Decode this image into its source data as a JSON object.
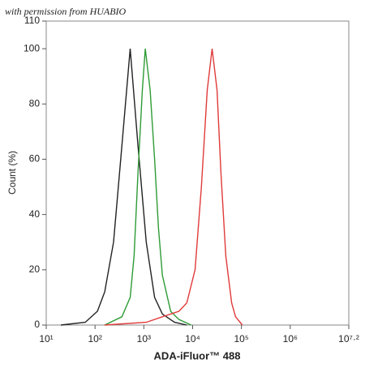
{
  "chart_data": {
    "type": "line",
    "watermark": "with permission from HUABIO",
    "xlabel": "ADA-iFluor™ 488",
    "ylabel": "Count  (%)",
    "xscale": "log",
    "xlim": [
      10,
      15848932
    ],
    "xticks": [
      {
        "value": 10,
        "label": "10¹"
      },
      {
        "value": 100,
        "label": "10²"
      },
      {
        "value": 1000,
        "label": "10³"
      },
      {
        "value": 10000,
        "label": "10⁴"
      },
      {
        "value": 100000,
        "label": "10⁵"
      },
      {
        "value": 1000000,
        "label": "10⁶"
      },
      {
        "value": 15848932,
        "label": "10⁷·²"
      }
    ],
    "ylim": [
      0,
      110
    ],
    "yticks": [
      0,
      20,
      40,
      60,
      80,
      100,
      110
    ],
    "series": [
      {
        "color": "#222222",
        "x": [
          20,
          63,
          112,
          158,
          240,
          355,
          525,
          759,
          1122,
          1660,
          2399,
          4266,
          7586
        ],
        "values": [
          0,
          1,
          5,
          12,
          30,
          65,
          100,
          65,
          30,
          10,
          4,
          1,
          0
        ]
      },
      {
        "color": "#2e9b35",
        "x": [
          158,
          355,
          525,
          631,
          759,
          933,
          1072,
          1349,
          1660,
          1995,
          2399,
          3548,
          5248,
          9333
        ],
        "values": [
          0,
          3,
          10,
          25,
          55,
          85,
          100,
          85,
          60,
          35,
          18,
          5,
          2,
          0
        ]
      },
      {
        "color": "#e03a3a",
        "x": [
          158,
          1122,
          2399,
          5248,
          7586,
          11220,
          15136,
          19953,
          25119,
          31623,
          38019,
          47863,
          63096,
          75858,
          104713
        ],
        "values": [
          0,
          1,
          3,
          5,
          8,
          20,
          50,
          85,
          100,
          85,
          55,
          25,
          8,
          3,
          0
        ]
      }
    ]
  }
}
